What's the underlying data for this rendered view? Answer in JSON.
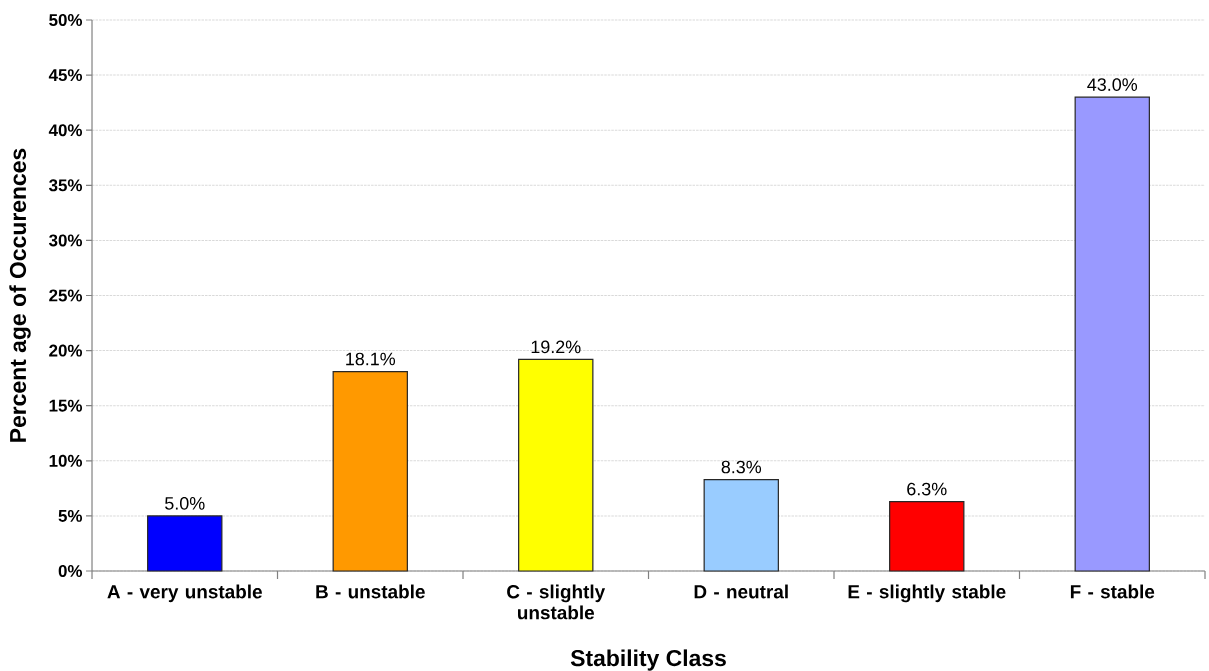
{
  "chart_data": {
    "type": "bar",
    "xlabel": "Stability Class",
    "ylabel": "Percent age of Occurences",
    "categories": [
      "A - very unstable",
      "B - unstable",
      "C - slightly unstable",
      "D - neutral",
      "E - slightly stable",
      "F - stable"
    ],
    "values": [
      5.0,
      18.1,
      19.2,
      8.3,
      6.3,
      43.0
    ],
    "colors": [
      "#0000ff",
      "#ff9900",
      "#ffff00",
      "#99ccff",
      "#ff0000",
      "#9999ff"
    ],
    "value_labels": [
      "5.0%",
      "18.1%",
      "19.2%",
      "8.3%",
      "6.3%",
      "43.0%"
    ],
    "ylim": [
      0,
      50
    ],
    "yticks": [
      {
        "value": 0,
        "label": "0%"
      },
      {
        "value": 5,
        "label": "5%"
      },
      {
        "value": 10,
        "label": "10%"
      },
      {
        "value": 15,
        "label": "15%"
      },
      {
        "value": 20,
        "label": "20%"
      },
      {
        "value": 25,
        "label": "25%"
      },
      {
        "value": 30,
        "label": "30%"
      },
      {
        "value": 35,
        "label": "35%"
      },
      {
        "value": 40,
        "label": "40%"
      },
      {
        "value": 45,
        "label": "45%"
      },
      {
        "value": 50,
        "label": "50%"
      }
    ],
    "grid": "y"
  }
}
